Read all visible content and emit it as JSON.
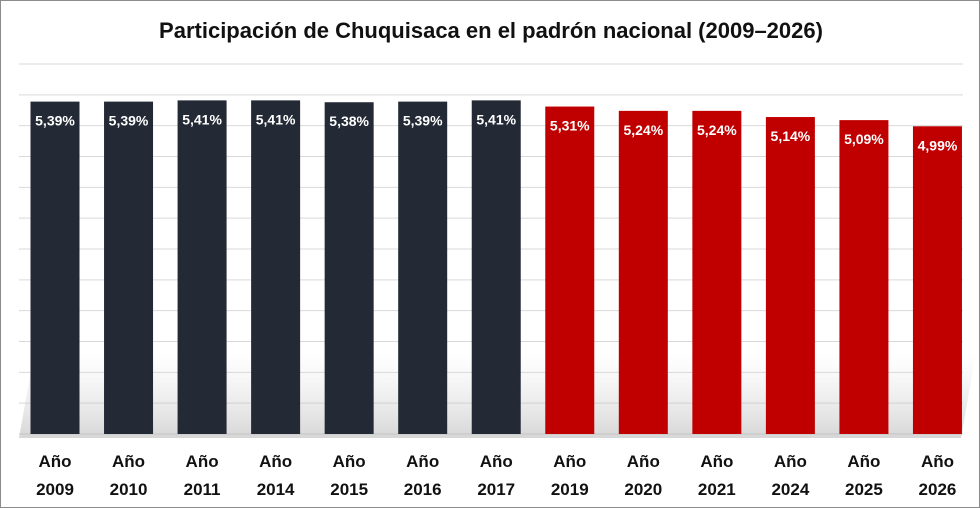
{
  "chart_data": {
    "type": "bar",
    "title": "Participación de Chuquisaca en el padrón nacional (2009–2026)",
    "xlabel": "",
    "ylabel": "",
    "ylim": [
      0,
      6
    ],
    "grid": true,
    "legend": "none",
    "categories": [
      [
        "Año",
        "2009"
      ],
      [
        "Año",
        "2010"
      ],
      [
        "Año",
        "2011"
      ],
      [
        "Año",
        "2014"
      ],
      [
        "Año",
        "2015"
      ],
      [
        "Año",
        "2016"
      ],
      [
        "Año",
        "2017"
      ],
      [
        "Año",
        "2019"
      ],
      [
        "Año",
        "2020"
      ],
      [
        "Año",
        "2021"
      ],
      [
        "Año",
        "2024"
      ],
      [
        "Año",
        "2025"
      ],
      [
        "Año",
        "2026"
      ]
    ],
    "values": [
      5.39,
      5.39,
      5.41,
      5.41,
      5.38,
      5.39,
      5.41,
      5.31,
      5.24,
      5.24,
      5.14,
      5.09,
      4.99
    ],
    "value_labels": [
      "5,39%",
      "5,39%",
      "5,41%",
      "5,41%",
      "5,38%",
      "5,39%",
      "5,41%",
      "5,31%",
      "5,24%",
      "5,24%",
      "5,14%",
      "5,09%",
      "4,99%"
    ],
    "bar_colors": [
      "#232a35",
      "#232a35",
      "#232a35",
      "#232a35",
      "#232a35",
      "#232a35",
      "#232a35",
      "#c00000",
      "#c00000",
      "#c00000",
      "#c00000",
      "#c00000",
      "#c00000"
    ]
  }
}
